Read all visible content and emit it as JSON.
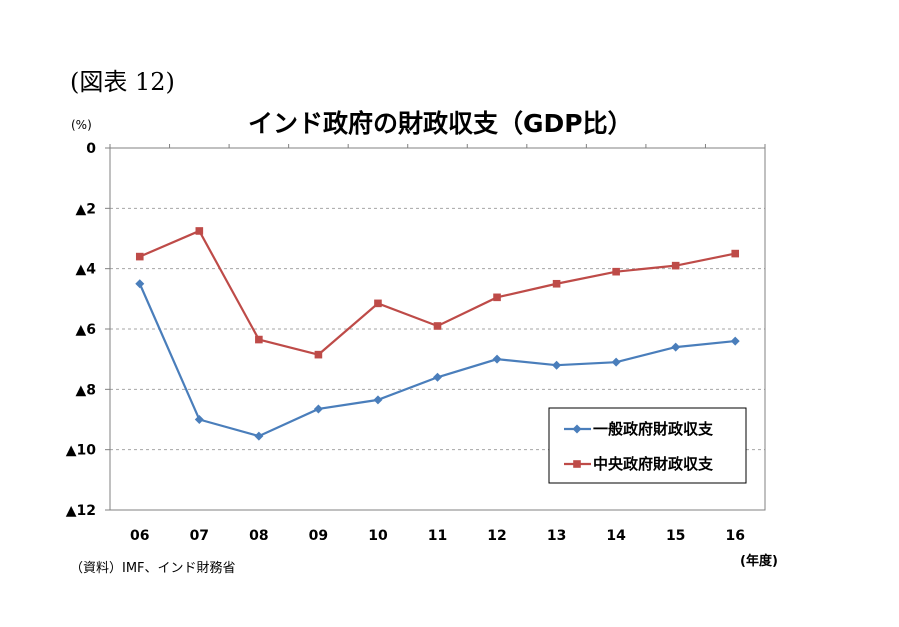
{
  "figure_label": "(図表 12)",
  "source_note": "（資料）IMF、インド財務省",
  "chart_data": {
    "type": "line",
    "title": "インド政府の財政収支（GDP比）",
    "ylabel": "(%)",
    "xlabel": "(年度)",
    "categories": [
      "06",
      "07",
      "08",
      "09",
      "10",
      "11",
      "12",
      "13",
      "14",
      "15",
      "16"
    ],
    "ylim": [
      -12,
      0
    ],
    "yticks": [
      0,
      -2,
      -4,
      -6,
      -8,
      -10,
      -12
    ],
    "ytick_labels": [
      "0",
      "▲2",
      "▲4",
      "▲6",
      "▲8",
      "▲10",
      "▲12"
    ],
    "grid": "horizontal dashed",
    "legend_position": "inside-bottom-right",
    "series": [
      {
        "name": "一般政府財政収支",
        "color": "#4a7ebb",
        "marker": "diamond",
        "values": [
          -4.5,
          -9.0,
          -9.55,
          -8.65,
          -8.35,
          -7.6,
          -7.0,
          -7.2,
          -7.1,
          -6.6,
          -6.4
        ]
      },
      {
        "name": "中央政府財政収支",
        "color": "#be4b48",
        "marker": "square",
        "values": [
          -3.6,
          -2.75,
          -6.35,
          -6.85,
          -5.15,
          -5.9,
          -4.95,
          -4.5,
          -4.1,
          -3.9,
          -3.5
        ]
      }
    ]
  }
}
